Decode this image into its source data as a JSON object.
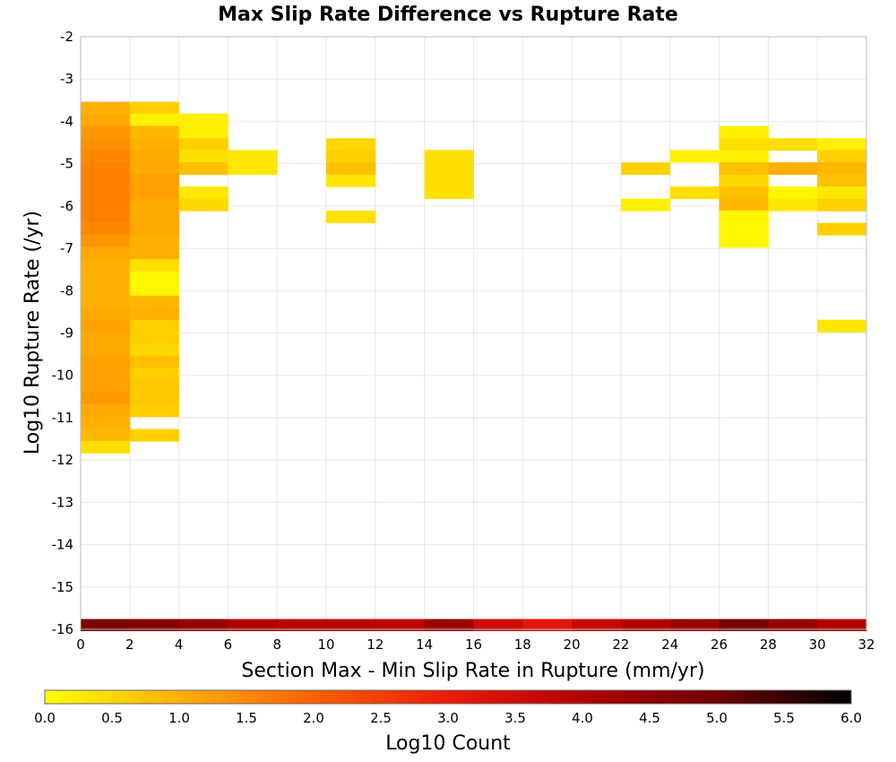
{
  "chart_data": {
    "type": "heatmap",
    "title": "Max Slip Rate Difference vs Rupture Rate",
    "xlabel": "Section Max - Min Slip Rate in Rupture (mm/yr)",
    "ylabel": "Log10 Rupture Rate (/yr)",
    "xlim": [
      0,
      32
    ],
    "ylim": [
      -16,
      -2
    ],
    "x_ticks": [
      "0",
      "2",
      "4",
      "6",
      "8",
      "10",
      "12",
      "14",
      "16",
      "18",
      "20",
      "22",
      "24",
      "26",
      "28",
      "30",
      "32"
    ],
    "y_ticks": [
      "-2",
      "-3",
      "-4",
      "-5",
      "-6",
      "-7",
      "-8",
      "-9",
      "-10",
      "-11",
      "-12",
      "-13",
      "-14",
      "-15",
      "-16"
    ],
    "grid": true,
    "colorbar": {
      "label": "Log10 Count",
      "range": [
        0,
        6
      ],
      "ticks": [
        "0.0",
        "0.5",
        "1.0",
        "1.5",
        "2.0",
        "2.5",
        "3.0",
        "3.5",
        "4.0",
        "4.5",
        "5.0",
        "5.5",
        "6.0"
      ],
      "colormap": [
        "#ffff00",
        "#ffb000",
        "#ff6000",
        "#ee1b0a",
        "#b00000",
        "#700000",
        "#000000"
      ]
    },
    "bin_width": 2,
    "bin_height": 0.286,
    "cells": [
      [
        1,
        -3.68,
        1.0
      ],
      [
        1,
        -3.96,
        1.1
      ],
      [
        1,
        -4.25,
        1.3
      ],
      [
        1,
        -4.54,
        1.4
      ],
      [
        1,
        -4.82,
        1.5
      ],
      [
        1,
        -5.11,
        1.6
      ],
      [
        1,
        -5.4,
        1.6
      ],
      [
        1,
        -5.68,
        1.6
      ],
      [
        1,
        -5.97,
        1.6
      ],
      [
        1,
        -6.25,
        1.6
      ],
      [
        1,
        -6.54,
        1.5
      ],
      [
        1,
        -6.83,
        1.3
      ],
      [
        1,
        -7.11,
        1.1
      ],
      [
        1,
        -7.4,
        1.0
      ],
      [
        1,
        -7.69,
        1.0
      ],
      [
        1,
        -7.97,
        1.0
      ],
      [
        1,
        -8.26,
        1.0
      ],
      [
        1,
        -8.54,
        1.1
      ],
      [
        1,
        -8.83,
        1.2
      ],
      [
        1,
        -9.12,
        1.1
      ],
      [
        1,
        -9.4,
        1.1
      ],
      [
        1,
        -9.69,
        1.2
      ],
      [
        1,
        -9.97,
        1.2
      ],
      [
        1,
        -10.26,
        1.2
      ],
      [
        1,
        -10.55,
        1.3
      ],
      [
        1,
        -10.83,
        1.1
      ],
      [
        1,
        -11.12,
        1.0
      ],
      [
        1,
        -11.41,
        0.9
      ],
      [
        1,
        -11.69,
        0.4
      ],
      [
        3,
        -3.68,
        0.6
      ],
      [
        3,
        -3.96,
        0.2
      ],
      [
        3,
        -4.25,
        0.9
      ],
      [
        3,
        -4.54,
        1.0
      ],
      [
        3,
        -4.82,
        1.1
      ],
      [
        3,
        -5.11,
        1.1
      ],
      [
        3,
        -5.4,
        1.2
      ],
      [
        3,
        -5.68,
        1.2
      ],
      [
        3,
        -5.97,
        1.1
      ],
      [
        3,
        -6.25,
        1.1
      ],
      [
        3,
        -6.54,
        1.1
      ],
      [
        3,
        -6.83,
        1.0
      ],
      [
        3,
        -7.11,
        1.0
      ],
      [
        3,
        -7.4,
        0.4
      ],
      [
        3,
        -7.69,
        0.1
      ],
      [
        3,
        -7.97,
        0.1
      ],
      [
        3,
        -8.26,
        0.9
      ],
      [
        3,
        -8.54,
        1.0
      ],
      [
        3,
        -8.83,
        0.6
      ],
      [
        3,
        -9.12,
        0.6
      ],
      [
        3,
        -9.4,
        0.5
      ],
      [
        3,
        -9.69,
        0.8
      ],
      [
        3,
        -9.97,
        0.6
      ],
      [
        3,
        -10.26,
        0.7
      ],
      [
        3,
        -10.55,
        0.7
      ],
      [
        3,
        -10.83,
        0.6
      ],
      [
        3,
        -11.41,
        0.6
      ],
      [
        5,
        -3.96,
        0.2
      ],
      [
        5,
        -4.25,
        0.2
      ],
      [
        5,
        -4.54,
        0.6
      ],
      [
        5,
        -4.82,
        0.4
      ],
      [
        5,
        -5.11,
        0.8
      ],
      [
        5,
        -5.68,
        0.3
      ],
      [
        5,
        -5.97,
        0.5
      ],
      [
        7,
        -4.82,
        0.3
      ],
      [
        7,
        -5.11,
        0.3
      ],
      [
        11,
        -4.54,
        0.5
      ],
      [
        11,
        -4.82,
        0.6
      ],
      [
        11,
        -5.11,
        0.8
      ],
      [
        11,
        -5.4,
        0.3
      ],
      [
        11,
        -6.25,
        0.4
      ],
      [
        15,
        -4.82,
        0.4
      ],
      [
        15,
        -5.11,
        0.4
      ],
      [
        15,
        -5.4,
        0.4
      ],
      [
        15,
        -5.68,
        0.4
      ],
      [
        23,
        -5.11,
        0.6
      ],
      [
        23,
        -5.97,
        0.2
      ],
      [
        25,
        -4.82,
        0.2
      ],
      [
        25,
        -5.68,
        0.4
      ],
      [
        27,
        -4.25,
        0.2
      ],
      [
        27,
        -4.54,
        0.4
      ],
      [
        27,
        -4.82,
        0.2
      ],
      [
        27,
        -5.11,
        0.8
      ],
      [
        27,
        -5.4,
        0.5
      ],
      [
        27,
        -5.68,
        0.8
      ],
      [
        27,
        -5.97,
        0.9
      ],
      [
        27,
        -6.25,
        0.1
      ],
      [
        27,
        -6.54,
        0.1
      ],
      [
        27,
        -6.83,
        0.1
      ],
      [
        29,
        -4.54,
        0.4
      ],
      [
        29,
        -5.11,
        1.0
      ],
      [
        29,
        -5.68,
        0.1
      ],
      [
        29,
        -5.97,
        0.3
      ],
      [
        31,
        -4.54,
        0.2
      ],
      [
        31,
        -4.82,
        0.6
      ],
      [
        31,
        -5.11,
        0.9
      ],
      [
        31,
        -5.4,
        0.8
      ],
      [
        31,
        -5.68,
        0.3
      ],
      [
        31,
        -5.97,
        0.6
      ],
      [
        31,
        -6.54,
        0.6
      ],
      [
        31,
        -8.83,
        0.3
      ]
    ],
    "bottom_row_y": -15.9,
    "bottom_row_values": [
      4.8,
      4.7,
      4.4,
      4.0,
      3.9,
      3.9,
      3.8,
      4.3,
      3.6,
      3.2,
      3.7,
      4.0,
      4.3,
      4.9,
      4.4,
      4.0
    ]
  }
}
